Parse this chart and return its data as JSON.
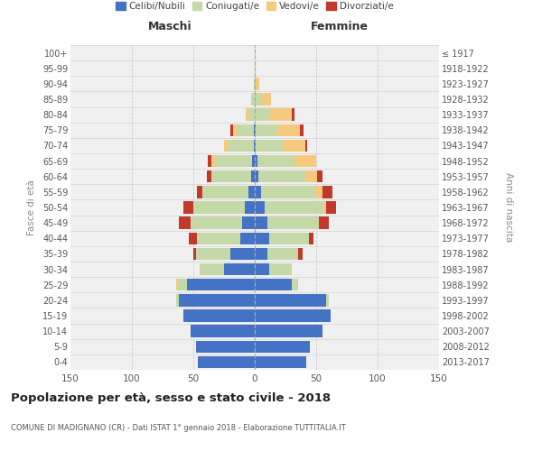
{
  "age_groups": [
    "0-4",
    "5-9",
    "10-14",
    "15-19",
    "20-24",
    "25-29",
    "30-34",
    "35-39",
    "40-44",
    "45-49",
    "50-54",
    "55-59",
    "60-64",
    "65-69",
    "70-74",
    "75-79",
    "80-84",
    "85-89",
    "90-94",
    "95-99",
    "100+"
  ],
  "birth_years": [
    "2013-2017",
    "2008-2012",
    "2003-2007",
    "1998-2002",
    "1993-1997",
    "1988-1992",
    "1983-1987",
    "1978-1982",
    "1973-1977",
    "1968-1972",
    "1963-1967",
    "1958-1962",
    "1953-1957",
    "1948-1952",
    "1943-1947",
    "1938-1942",
    "1933-1937",
    "1928-1932",
    "1923-1927",
    "1918-1922",
    "≤ 1917"
  ],
  "male_celibi": [
    46,
    48,
    52,
    58,
    62,
    55,
    25,
    20,
    12,
    10,
    8,
    5,
    3,
    2,
    1,
    1,
    0,
    0,
    0,
    0,
    0
  ],
  "male_coniugati": [
    0,
    0,
    0,
    0,
    2,
    8,
    20,
    28,
    35,
    42,
    42,
    38,
    32,
    30,
    20,
    14,
    5,
    2,
    1,
    0,
    0
  ],
  "male_vedovi": [
    0,
    0,
    0,
    0,
    0,
    1,
    0,
    0,
    0,
    0,
    0,
    0,
    0,
    3,
    4,
    3,
    2,
    1,
    0,
    0,
    0
  ],
  "male_divorziati": [
    0,
    0,
    0,
    0,
    0,
    0,
    0,
    2,
    7,
    10,
    8,
    4,
    4,
    3,
    0,
    2,
    0,
    0,
    0,
    0,
    0
  ],
  "female_nubili": [
    42,
    45,
    55,
    62,
    58,
    30,
    12,
    10,
    12,
    10,
    8,
    5,
    3,
    2,
    1,
    1,
    0,
    0,
    0,
    0,
    0
  ],
  "female_coniugate": [
    0,
    0,
    0,
    0,
    2,
    5,
    18,
    25,
    32,
    42,
    48,
    45,
    38,
    30,
    22,
    18,
    12,
    5,
    1,
    0,
    0
  ],
  "female_vedove": [
    0,
    0,
    0,
    0,
    0,
    0,
    0,
    0,
    0,
    0,
    2,
    5,
    10,
    18,
    18,
    18,
    18,
    8,
    3,
    1,
    0
  ],
  "female_divorziate": [
    0,
    0,
    0,
    0,
    0,
    0,
    0,
    4,
    4,
    8,
    8,
    8,
    4,
    0,
    2,
    3,
    2,
    0,
    0,
    0,
    0
  ],
  "colors": {
    "celibi": "#4472c4",
    "coniugati": "#c5d9a8",
    "vedovi": "#f5c97e",
    "divorziati": "#c0392b"
  },
  "xlim": 150,
  "title": "Popolazione per età, sesso e stato civile - 2018",
  "subtitle": "COMUNE DI MADIGNANO (CR) - Dati ISTAT 1° gennaio 2018 - Elaborazione TUTTITALIA.IT",
  "ylabel_left": "Fasce di età",
  "ylabel_right": "Anni di nascita",
  "xlabel_male": "Maschi",
  "xlabel_female": "Femmine"
}
